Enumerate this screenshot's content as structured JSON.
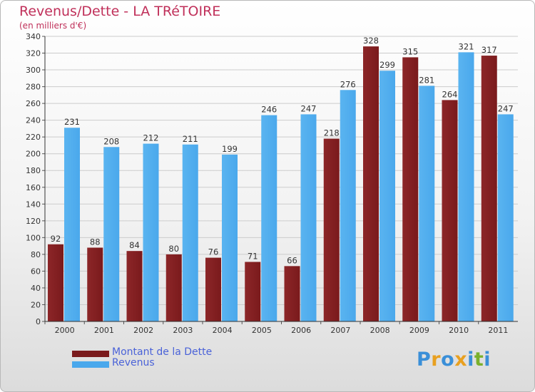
{
  "title": "Revenus/Dette - LA TRéTOIRE",
  "subtitle": "(en milliers d'€)",
  "logo": {
    "text": "Proxiti",
    "letter_colors": [
      "#3a8fd8",
      "#e8a020",
      "#3a8fd8",
      "#e8a020",
      "#3a8fd8",
      "#7ab02c",
      "#3a8fd8"
    ]
  },
  "colors": {
    "dette": "#7a1a1c",
    "revenus": "#4aa8ec",
    "axis_text": "#333333",
    "label_text": "#333333",
    "grid": "#cccccc"
  },
  "chart_data": {
    "type": "bar",
    "categories": [
      "2000",
      "2001",
      "2002",
      "2003",
      "2004",
      "2005",
      "2006",
      "2007",
      "2008",
      "2009",
      "2010",
      "2011"
    ],
    "series": [
      {
        "name": "Montant de la Dette",
        "values": [
          92,
          88,
          84,
          80,
          76,
          71,
          66,
          218,
          328,
          315,
          264,
          317
        ]
      },
      {
        "name": "Revenus",
        "values": [
          231,
          208,
          212,
          211,
          199,
          246,
          247,
          276,
          299,
          281,
          321,
          247
        ]
      }
    ],
    "ylim": [
      0,
      340
    ],
    "ytick_step": 20,
    "grid": true,
    "legend_position": "bottom-left"
  }
}
